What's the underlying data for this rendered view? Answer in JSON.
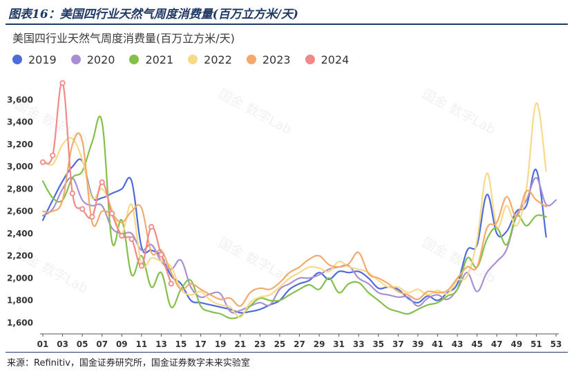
{
  "header": {
    "caption": "图表16：美国四行业天然气周度消费量(百万立方米/天)"
  },
  "footer": {
    "source": "来源：Refinitiv，国金证券研究所，国金证券数字未来实验室"
  },
  "watermark": "国金 数字Lab",
  "chart_data": {
    "type": "line",
    "title": "美国四行业天然气周度消费量(百万立方米/天)",
    "xlabel": "",
    "ylabel": "",
    "x_ticks": [
      "01",
      "03",
      "05",
      "07",
      "09",
      "11",
      "13",
      "15",
      "17",
      "19",
      "21",
      "23",
      "25",
      "27",
      "29",
      "31",
      "33",
      "35",
      "37",
      "39",
      "41",
      "43",
      "45",
      "47",
      "49",
      "51",
      "53"
    ],
    "xlim": [
      1,
      53
    ],
    "ylim": [
      1500,
      3800
    ],
    "y_ticks": [
      1600,
      1800,
      2000,
      2200,
      2400,
      2600,
      2800,
      3000,
      3200,
      3400,
      3600
    ],
    "y_tick_labels": [
      "1,600",
      "1,800",
      "2,000",
      "2,200",
      "2,400",
      "2,600",
      "2,800",
      "3,000",
      "3,200",
      "3,400",
      "3,600"
    ],
    "grid": false,
    "legend_position": "top-left",
    "series": [
      {
        "name": "2019",
        "color": "#4d6bd9",
        "marker": false,
        "x": [
          1,
          2,
          3,
          4,
          5,
          6,
          7,
          8,
          9,
          10,
          11,
          12,
          13,
          14,
          15,
          16,
          17,
          18,
          19,
          20,
          21,
          22,
          23,
          24,
          25,
          26,
          27,
          28,
          29,
          30,
          31,
          32,
          33,
          34,
          35,
          36,
          37,
          38,
          39,
          40,
          41,
          42,
          43,
          44,
          45,
          46,
          47,
          48,
          49,
          50,
          51,
          52
        ],
        "y": [
          2520,
          2700,
          2870,
          3000,
          3050,
          2730,
          2720,
          2760,
          2800,
          2870,
          2280,
          2250,
          2200,
          2020,
          1950,
          1800,
          1780,
          1760,
          1740,
          1720,
          1690,
          1700,
          1720,
          1760,
          1800,
          1900,
          1950,
          1980,
          2050,
          1990,
          2060,
          2050,
          2060,
          2000,
          1910,
          1920,
          1900,
          1820,
          1780,
          1840,
          1800,
          1870,
          1950,
          2250,
          2300,
          2750,
          2400,
          2420,
          2600,
          2650,
          2970,
          2370
        ]
      },
      {
        "name": "2020",
        "color": "#a98fd1",
        "marker": false,
        "x": [
          1,
          2,
          3,
          4,
          5,
          6,
          7,
          8,
          9,
          10,
          11,
          12,
          13,
          14,
          15,
          16,
          17,
          18,
          19,
          20,
          21,
          22,
          23,
          24,
          25,
          26,
          27,
          28,
          29,
          30,
          31,
          32,
          33,
          34,
          35,
          36,
          37,
          38,
          39,
          40,
          41,
          42,
          43,
          44,
          45,
          46,
          47,
          48,
          49,
          50,
          51,
          52,
          53
        ],
        "y": [
          2560,
          2620,
          2800,
          2900,
          2700,
          2650,
          2650,
          2450,
          2400,
          2400,
          2250,
          2300,
          2150,
          2080,
          2160,
          1920,
          1830,
          1860,
          1860,
          1700,
          1710,
          1750,
          1780,
          1760,
          1900,
          1950,
          2000,
          2000,
          2030,
          2080,
          2100,
          2110,
          2000,
          1950,
          1870,
          1850,
          1830,
          1830,
          1750,
          1820,
          1850,
          1810,
          1900,
          2050,
          1880,
          2050,
          2150,
          2260,
          2560,
          2700,
          2900,
          2660,
          2700
        ]
      },
      {
        "name": "2021",
        "color": "#84c049",
        "marker": false,
        "x": [
          1,
          2,
          3,
          4,
          5,
          6,
          7,
          8,
          9,
          10,
          11,
          12,
          13,
          14,
          15,
          16,
          17,
          18,
          19,
          20,
          21,
          22,
          23,
          24,
          25,
          26,
          27,
          28,
          29,
          30,
          31,
          32,
          33,
          34,
          35,
          36,
          37,
          38,
          39,
          40,
          41,
          42,
          43,
          44,
          45,
          46,
          47,
          48,
          49,
          50,
          51,
          52
        ],
        "y": [
          2870,
          2720,
          2700,
          2900,
          2960,
          3220,
          3400,
          2330,
          2520,
          2030,
          2200,
          1920,
          2050,
          1740,
          1900,
          1980,
          1750,
          1700,
          1680,
          1640,
          1660,
          1750,
          1820,
          1800,
          1800,
          1850,
          1900,
          1940,
          1900,
          2000,
          1870,
          1950,
          1960,
          1870,
          1800,
          1730,
          1700,
          1680,
          1720,
          1760,
          1780,
          1840,
          1900,
          2180,
          2100,
          2350,
          2450,
          2300,
          2560,
          2470,
          2560,
          2550
        ]
      },
      {
        "name": "2022",
        "color": "#f7d987",
        "marker": false,
        "x": [
          1,
          2,
          3,
          4,
          5,
          6,
          7,
          8,
          9,
          10,
          11,
          12,
          13,
          14,
          15,
          16,
          17,
          18,
          19,
          20,
          21,
          22,
          23,
          24,
          25,
          26,
          27,
          28,
          29,
          30,
          31,
          32,
          33,
          34,
          35,
          36,
          37,
          38,
          39,
          40,
          41,
          42,
          43,
          44,
          45,
          46,
          47,
          48,
          49,
          50,
          51,
          52
        ],
        "y": [
          3060,
          3020,
          3200,
          3250,
          3060,
          2720,
          2800,
          2620,
          2400,
          2660,
          2120,
          2180,
          2150,
          2100,
          1900,
          1850,
          1880,
          1800,
          1760,
          1740,
          1650,
          1780,
          1830,
          1850,
          1920,
          2000,
          2050,
          2100,
          2090,
          2060,
          2150,
          2100,
          2080,
          2050,
          1980,
          1920,
          1920,
          1870,
          1900,
          1850,
          1890,
          1860,
          1980,
          2020,
          2340,
          2940,
          2460,
          2650,
          2470,
          2800,
          3570,
          2960
        ]
      },
      {
        "name": "2023",
        "color": "#f3a96b",
        "marker": false,
        "x": [
          1,
          2,
          3,
          4,
          5,
          6,
          7,
          8,
          9,
          10,
          11,
          12,
          13,
          14,
          15,
          16,
          17,
          18,
          19,
          20,
          21,
          22,
          23,
          24,
          25,
          26,
          27,
          28,
          29,
          30,
          31,
          32,
          33,
          34,
          35,
          36,
          37,
          38,
          39,
          40,
          41,
          42,
          43,
          44,
          45,
          46,
          47,
          48,
          49,
          50,
          51,
          52
        ],
        "y": [
          2600,
          2600,
          2700,
          3200,
          3230,
          2500,
          2600,
          2570,
          2500,
          2600,
          2630,
          2230,
          2250,
          2050,
          1900,
          1950,
          1900,
          1850,
          1810,
          1820,
          1750,
          1870,
          1910,
          1900,
          1960,
          2050,
          2100,
          2170,
          2200,
          2120,
          2100,
          2130,
          2230,
          2040,
          2000,
          1950,
          1880,
          1850,
          1810,
          1880,
          1870,
          1890,
          2000,
          2100,
          2100,
          2450,
          2500,
          2730,
          2550,
          2780,
          2700,
          2640
        ]
      },
      {
        "name": "2024",
        "color": "#f28888",
        "marker": true,
        "x": [
          1,
          2,
          3,
          4,
          5,
          6,
          7,
          8,
          9,
          10,
          11,
          12,
          13,
          14
        ],
        "y": [
          3040,
          3100,
          3750,
          2760,
          2620,
          2550,
          2860,
          2580,
          2380,
          2350,
          2110,
          2460,
          2210,
          1950
        ]
      }
    ]
  }
}
